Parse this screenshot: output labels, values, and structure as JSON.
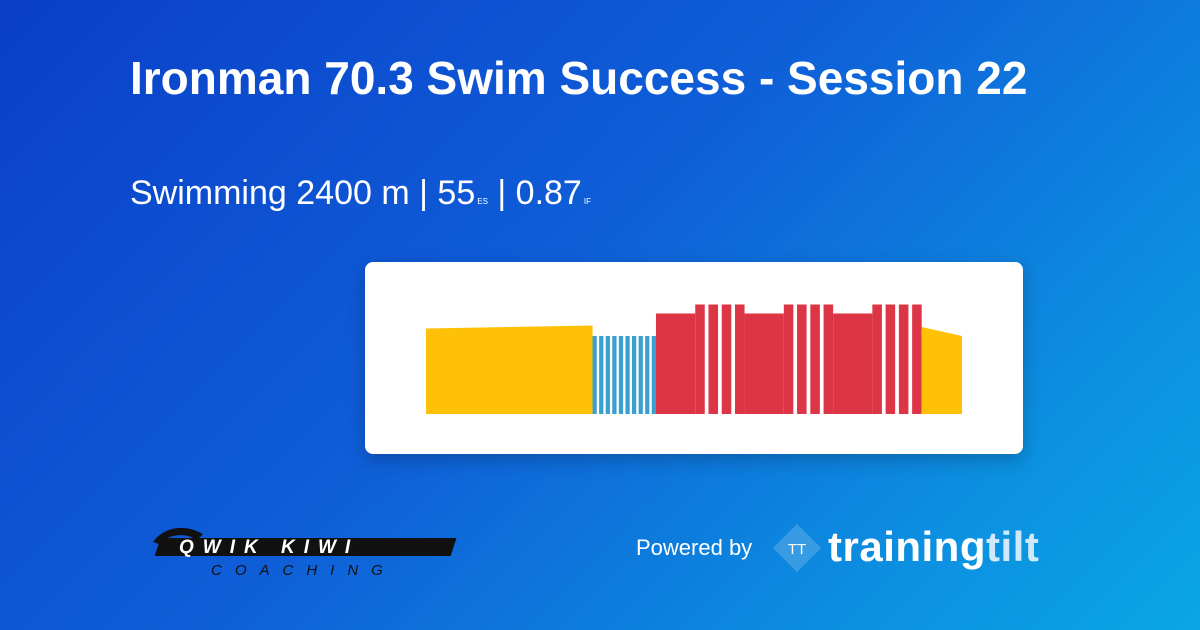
{
  "title": "Ironman 70.3 Swim Success - Session 22",
  "subtitle": {
    "sport": "Swimming 2400 m",
    "sep1": "|",
    "es_value": "55",
    "es_unit": "ES",
    "sep2": "|",
    "if_value": "0.87",
    "if_unit": "IF"
  },
  "workout_chart": {
    "colors": {
      "warm": "#ffc107",
      "drill": "#3aa0d2",
      "hard": "#dc3545"
    },
    "segments": [
      {
        "zone": "warm",
        "repeat": 1,
        "duration": 15.7,
        "start": 0.57,
        "end": 0.59,
        "gap": 0
      },
      {
        "zone": "drill",
        "repeat": 10,
        "duration": 0.4,
        "intensity": 0.52,
        "gap": 0.22
      },
      {
        "zone": "hard",
        "repeat": 1,
        "duration": 3.7,
        "intensity": 0.67
      },
      {
        "zone": "hard",
        "repeat": 4,
        "duration": 0.9,
        "intensity": 0.73,
        "gap": 0.35
      },
      {
        "zone": "hard",
        "repeat": 1,
        "duration": 3.7,
        "intensity": 0.67
      },
      {
        "zone": "hard",
        "repeat": 4,
        "duration": 0.9,
        "intensity": 0.73,
        "gap": 0.35
      },
      {
        "zone": "hard",
        "repeat": 1,
        "duration": 3.7,
        "intensity": 0.67
      },
      {
        "zone": "hard",
        "repeat": 4,
        "duration": 0.9,
        "intensity": 0.73,
        "gap": 0.35
      },
      {
        "zone": "warm",
        "repeat": 1,
        "duration": 3.8,
        "start": 0.58,
        "end": 0.52
      }
    ]
  },
  "logo_left": {
    "line1": "QWIK KIWI",
    "line2": "COACHING"
  },
  "footer": {
    "powered_by": "Powered by",
    "brand_mark": "TT",
    "brand_word_a": "training",
    "brand_word_b": "tilt"
  }
}
